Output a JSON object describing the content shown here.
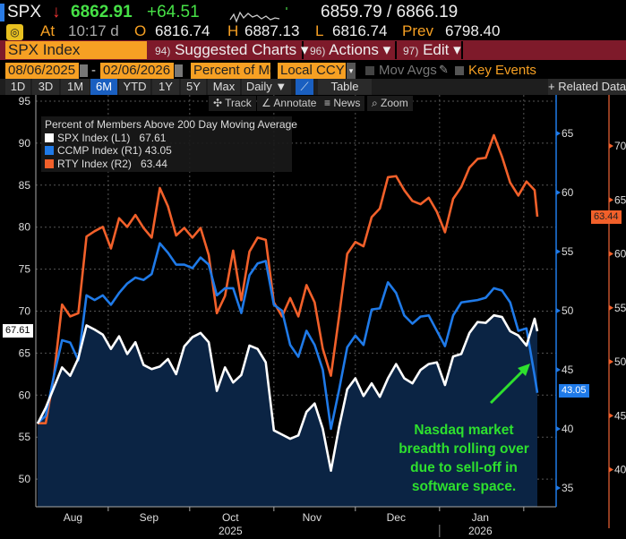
{
  "header": {
    "ticker": "SPX",
    "direction_icon": "down-arrow-icon",
    "last": "6862.91",
    "change": "+64.51",
    "bid_ask": "6859.79 / 6866.19",
    "at_label": "At",
    "time": "10:17 d",
    "open_label": "O",
    "open": "6816.74",
    "high_label": "H",
    "high": "6887.13",
    "low_label": "L",
    "low": "6816.74",
    "prev_label": "Prev",
    "prev": "6798.40"
  },
  "menu": {
    "security": "SPX Index",
    "items": [
      {
        "num": "94)",
        "label": "Suggested Charts ▾"
      },
      {
        "num": "96)",
        "label": "Actions ▾"
      },
      {
        "num": "97)",
        "label": "Edit ▾"
      }
    ]
  },
  "controls": {
    "start_date": "08/06/2025",
    "end_date": "02/06/2026",
    "dash": "-",
    "field": "Percent of Me",
    "currency": "Local CCY",
    "mov_avgs": "Mov Avgs",
    "key_events": "Key Events"
  },
  "timeframes": [
    {
      "label": "1D"
    },
    {
      "label": "3D"
    },
    {
      "label": "1M"
    },
    {
      "label": "6M",
      "selected": true
    },
    {
      "label": "YTD"
    },
    {
      "label": "1Y"
    },
    {
      "label": "5Y"
    },
    {
      "label": "Max"
    },
    {
      "label": "Daily ▼"
    },
    {
      "label": "Table"
    }
  ],
  "related_data": "+ Related Data",
  "tools": [
    "✣ Track",
    "∠ Annotate",
    "≡ News",
    "⌕ Zoom"
  ],
  "annotation": {
    "lines": [
      "Nasdaq market",
      "breadth rolling over",
      "due to sell-off in",
      "software space."
    ],
    "color": "#2ee02e"
  },
  "chart_data": {
    "type": "line",
    "title": "Percent of Members Above 200 Day Moving Average",
    "x_tick_labels": [
      "Aug",
      "Sep",
      "Oct",
      "Nov",
      "Dec",
      "Jan"
    ],
    "year_labels": [
      "2025",
      "2026"
    ],
    "x_range": [
      "2025-08-06",
      "2026-02-06"
    ],
    "axes": {
      "L1": {
        "range": [
          47,
          96
        ],
        "ticks": [
          50,
          55,
          60,
          65,
          70,
          75,
          80,
          85,
          90,
          95
        ]
      },
      "R1": {
        "range": [
          33,
          68
        ],
        "ticks": [
          35,
          40,
          45,
          50,
          55,
          60,
          65
        ]
      },
      "R2": {
        "range": [
          37,
          74
        ],
        "ticks": [
          40,
          45,
          50,
          55,
          60,
          65,
          70
        ]
      }
    },
    "grid": true,
    "legend_position": "top-left",
    "x": [
      "2025-08-06",
      "2025-08-09",
      "2025-08-12",
      "2025-08-15",
      "2025-08-18",
      "2025-08-21",
      "2025-08-24",
      "2025-08-27",
      "2025-08-30",
      "2025-09-02",
      "2025-09-05",
      "2025-09-08",
      "2025-09-11",
      "2025-09-14",
      "2025-09-17",
      "2025-09-20",
      "2025-09-23",
      "2025-09-26",
      "2025-09-29",
      "2025-10-02",
      "2025-10-05",
      "2025-10-08",
      "2025-10-11",
      "2025-10-14",
      "2025-10-17",
      "2025-10-20",
      "2025-10-23",
      "2025-10-26",
      "2025-10-29",
      "2025-11-01",
      "2025-11-04",
      "2025-11-07",
      "2025-11-10",
      "2025-11-13",
      "2025-11-16",
      "2025-11-19",
      "2025-11-22",
      "2025-11-25",
      "2025-11-28",
      "2025-12-01",
      "2025-12-04",
      "2025-12-07",
      "2025-12-10",
      "2025-12-13",
      "2025-12-16",
      "2025-12-19",
      "2025-12-22",
      "2025-12-25",
      "2025-12-28",
      "2025-12-31",
      "2026-01-03",
      "2026-01-06",
      "2026-01-09",
      "2026-01-12",
      "2026-01-15",
      "2026-01-18",
      "2026-01-21",
      "2026-01-24",
      "2026-01-27",
      "2026-01-30",
      "2026-02-02",
      "2026-02-05",
      "2026-02-06"
    ],
    "series": [
      {
        "name": "SPX Index (L1)",
        "axis": "L1",
        "color": "#ffffff",
        "last": "67.61",
        "values": [
          56.6,
          58.5,
          60.9,
          63.3,
          62.3,
          64.4,
          68.3,
          67.8,
          67.2,
          65.5,
          67.0,
          64.9,
          66.3,
          63.6,
          63.1,
          63.4,
          64.3,
          62.5,
          65.8,
          66.9,
          67.4,
          66.3,
          60.5,
          63.3,
          61.5,
          62.4,
          65.9,
          65.5,
          63.9,
          55.8,
          55.3,
          54.8,
          55.2,
          58.0,
          59.0,
          56.0,
          51.0,
          56.2,
          60.7,
          62.0,
          59.9,
          61.4,
          59.8,
          62.0,
          63.7,
          62.0,
          61.4,
          63.0,
          63.7,
          63.9,
          61.2,
          64.6,
          64.9,
          67.4,
          68.7,
          68.6,
          69.5,
          69.3,
          67.6,
          67.1,
          65.9,
          69.1,
          67.61
        ]
      },
      {
        "name": "CCMP Index (R1)",
        "axis": "R1",
        "color": "#1f7ae8",
        "last": "43.05",
        "values": [
          40.5,
          41.1,
          44.5,
          47.5,
          47.3,
          45.8,
          51.3,
          50.9,
          51.3,
          50.5,
          51.5,
          52.3,
          52.8,
          52.6,
          53.1,
          55.7,
          54.9,
          53.9,
          53.9,
          53.6,
          54.5,
          53.9,
          51.3,
          51.9,
          51.9,
          49.8,
          53.0,
          54.0,
          54.2,
          50.5,
          50.0,
          47.1,
          46.1,
          48.3,
          47.1,
          45.0,
          40.0,
          43.3,
          46.9,
          47.9,
          47.1,
          50.1,
          50.2,
          52.4,
          51.5,
          49.6,
          48.9,
          49.5,
          49.6,
          48.3,
          47.0,
          49.6,
          50.7,
          50.8,
          50.9,
          51.1,
          51.9,
          51.7,
          50.7,
          48.3,
          48.5,
          44.5,
          43.05
        ]
      },
      {
        "name": "RTY Index (R2)",
        "axis": "R2",
        "color": "#f2602a",
        "last": "63.44",
        "values": [
          44.3,
          44.3,
          48.7,
          55.3,
          54.2,
          54.5,
          61.6,
          62.1,
          62.5,
          60.5,
          63.3,
          62.5,
          63.6,
          62.4,
          61.5,
          66.1,
          64.4,
          61.7,
          62.4,
          61.5,
          62.4,
          59.9,
          54.5,
          56.1,
          60.3,
          55.7,
          60.2,
          61.5,
          61.3,
          55.5,
          54.2,
          55.9,
          54.2,
          57.1,
          55.5,
          51.2,
          48.7,
          54.2,
          60.0,
          61.1,
          60.7,
          63.4,
          64.2,
          67.1,
          67.2,
          65.9,
          64.9,
          64.6,
          65.2,
          63.9,
          62.0,
          65.1,
          66.2,
          68.0,
          68.8,
          68.9,
          71.0,
          69.0,
          66.6,
          65.4,
          66.7,
          65.9,
          63.44
        ]
      }
    ]
  }
}
